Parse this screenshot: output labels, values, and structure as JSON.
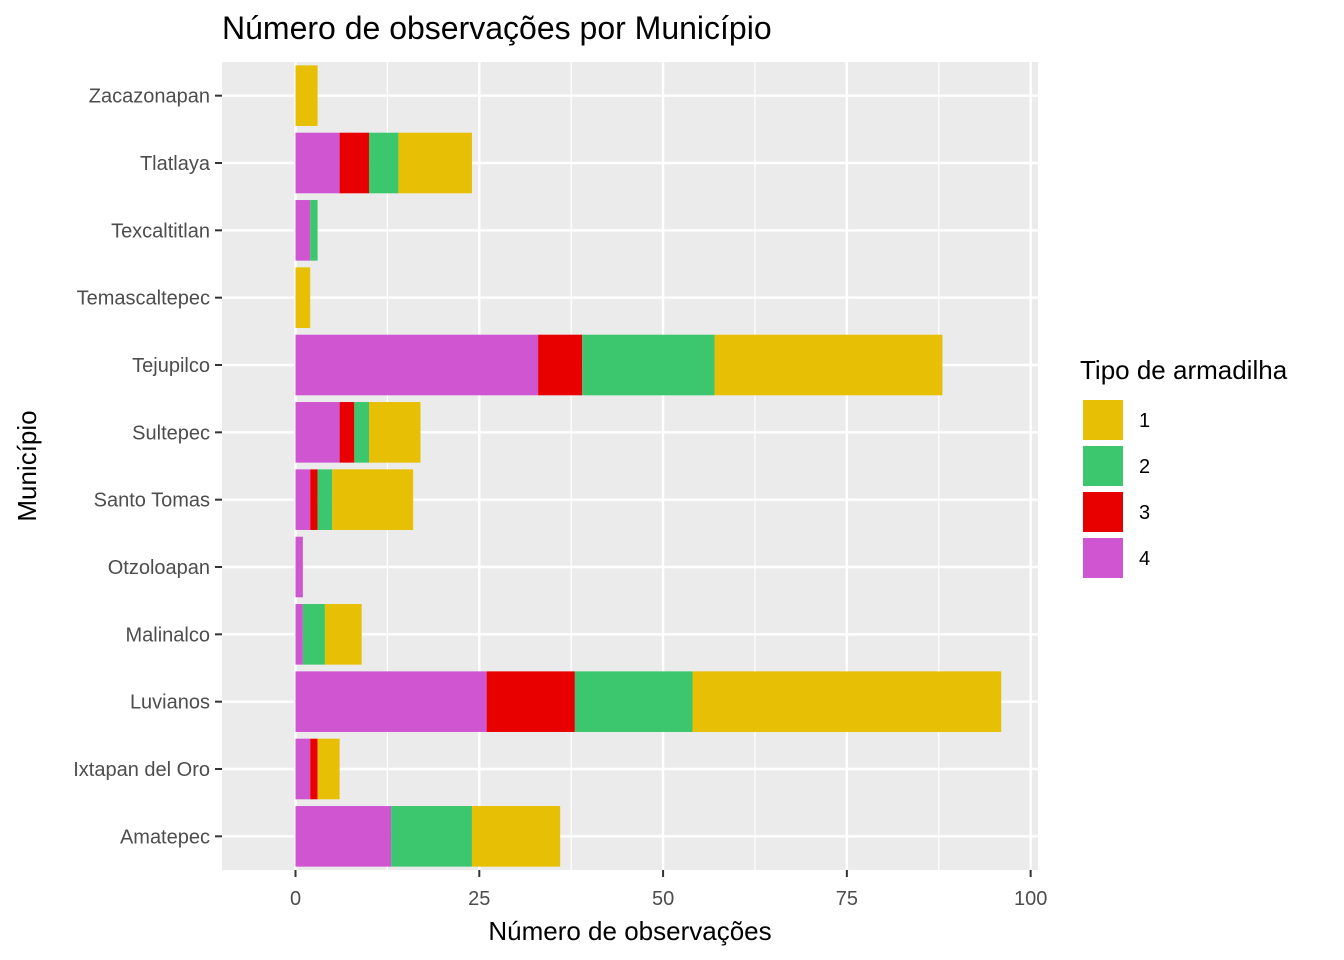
{
  "chart_data": {
    "type": "bar",
    "orientation": "horizontal",
    "stacked": true,
    "title": "Número de observações por Município",
    "xlabel": "Número de observações",
    "ylabel": "Município",
    "xlim": [
      -10,
      101
    ],
    "xticks": [
      0,
      25,
      50,
      75,
      100
    ],
    "xtick_labels": [
      "0",
      "25",
      "50",
      "75",
      "100"
    ],
    "grid": true,
    "categories": [
      "Amatepec",
      "Ixtapan del Oro",
      "Luvianos",
      "Malinalco",
      "Otzoloapan",
      "Santo Tomas",
      "Sultepec",
      "Tejupilco",
      "Temascaltepec",
      "Texcaltitlan",
      "Tlatlaya",
      "Zacazonapan"
    ],
    "stack_order": [
      "4",
      "3",
      "2",
      "1"
    ],
    "series": [
      {
        "name": "1",
        "color": "#E7BF05",
        "values": [
          12,
          3,
          42,
          5,
          0,
          11,
          7,
          31,
          2,
          0,
          10,
          3
        ]
      },
      {
        "name": "2",
        "color": "#3CC66D",
        "values": [
          11,
          0,
          16,
          3,
          0,
          2,
          2,
          18,
          0,
          1,
          4,
          0
        ]
      },
      {
        "name": "3",
        "color": "#E80000",
        "values": [
          0,
          1,
          12,
          0,
          0,
          1,
          2,
          6,
          0,
          0,
          4,
          0
        ]
      },
      {
        "name": "4",
        "color": "#CF55D1",
        "values": [
          13,
          2,
          26,
          1,
          1,
          2,
          6,
          33,
          0,
          2,
          6,
          0
        ]
      }
    ],
    "legend": {
      "title": "Tipo de armadilha",
      "position": "right",
      "items": [
        "1",
        "2",
        "3",
        "4"
      ]
    }
  }
}
